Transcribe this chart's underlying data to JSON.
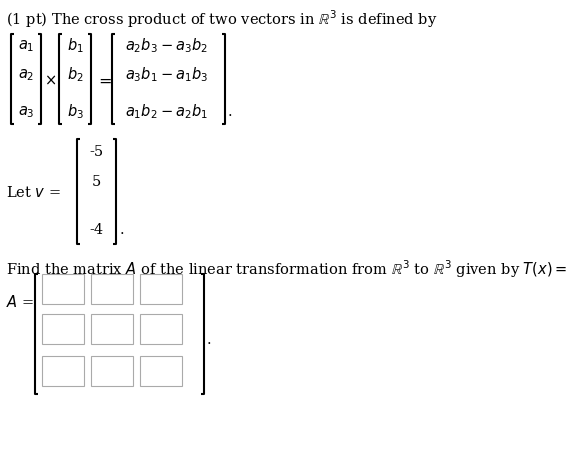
{
  "title_line": "(1 pt) The cross product of two vectors in $\\mathbb{R}^3$ is defined by",
  "vec_a": [
    "$a_1$",
    "$a_2$",
    "$a_3$"
  ],
  "vec_b": [
    "$b_1$",
    "$b_2$",
    "$b_3$"
  ],
  "vec_result": [
    "$a_2b_3 - a_3b_2$",
    "$a_3b_1 - a_1b_3$",
    "$a_1b_2 - a_2b_1$"
  ],
  "let_v_values": [
    "-5",
    "5",
    "-4"
  ],
  "find_text": "Find the matrix $A$ of the linear transformation from $\\mathbb{R}^3$ to $\\mathbb{R}^3$ given by $T(x) = v \\times x$.",
  "background_color": "#ffffff",
  "text_color": "#000000",
  "font_size": 10.5,
  "box_fill": "#ffffff",
  "box_edge": "#aaaaaa",
  "bracket_lw": 1.5,
  "bracket_serif": 4
}
